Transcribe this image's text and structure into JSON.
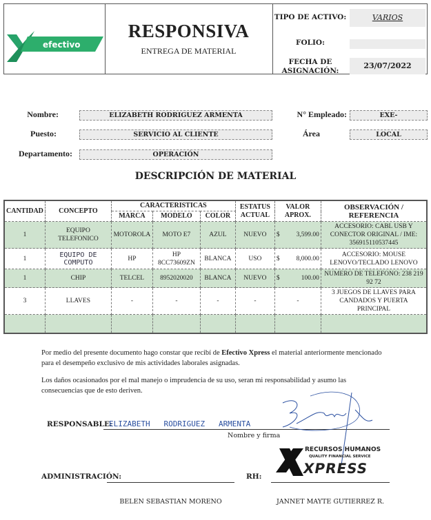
{
  "header": {
    "logo_text": "efectivo",
    "title": "RESPONSIVA",
    "subtitle": "ENTREGA DE MATERIAL",
    "tipo_label": "TIPO DE ACTIVO:",
    "tipo_value": "VARIOS",
    "folio_label": "FOLIO:",
    "folio_value": "",
    "fecha_label_1": "FECHA DE",
    "fecha_label_2": "ASIGNACIÓN:",
    "fecha_value": "23/07/2022"
  },
  "fields": {
    "nombre_label": "Nombre:",
    "nombre": "ELIZABETH RODRIGUEZ ARMENTA",
    "empleado_label": "N° Empleado:",
    "empleado": "EXE-",
    "puesto_label": "Puesto:",
    "puesto": "SERVICIO AL CLIENTE",
    "area_label": "Área",
    "area": "LOCAL",
    "depto_label": "Departamento:",
    "depto": "OPERACIÓN"
  },
  "section_title": "DESCRIPCIÓN DE MATERIAL",
  "table": {
    "headers": {
      "cantidad": "CANTIDAD",
      "concepto": "CONCEPTO",
      "caracteristicas": "CARACTERISTICAS",
      "marca": "MARCA",
      "modelo": "MODELO",
      "color": "COLOR",
      "estatus": "ESTATUS ACTUAL",
      "valor": "VALOR APROX.",
      "obs": "OBSERVACIÓN / REFERENCIA"
    },
    "rows": [
      {
        "cantidad": "1",
        "concepto": "EQUIPO TELEFONICO",
        "marca": "MOTOROLA",
        "modelo": "MOTO E7",
        "color": "AZUL",
        "estatus": "NUEVO",
        "currency": "$",
        "valor": "3,599.00",
        "obs": "ACCESORIO: CABL USB Y CONECTOR ORIGINAL / IME: 356915110537445"
      },
      {
        "cantidad": "1",
        "concepto": "EQUIPO DE COMPUTO",
        "marca": "HP",
        "modelo": "HP 8CC73609ZN",
        "color": "BLANCA",
        "estatus": "USO",
        "currency": "$",
        "valor": "8,000.00",
        "obs": "ACCESORIO: MOUSE LENOVO/TECLADO LENOVO"
      },
      {
        "cantidad": "1",
        "concepto": "CHIP",
        "marca": "TELCEL",
        "modelo": "8952020020",
        "color": "BLANCA",
        "estatus": "NUEVO",
        "currency": "$",
        "valor": "100.00",
        "obs": "NUMERO DE TELEFONO: 238 219 92 72"
      },
      {
        "cantidad": "3",
        "concepto": "LLAVES",
        "marca": "-",
        "modelo": "-",
        "color": "-",
        "estatus": "-",
        "currency": "",
        "valor": "-",
        "obs": "3 JUEGOS DE LLAVES PARA CANDADOS Y PUERTA PRINCIPAL"
      }
    ]
  },
  "text": {
    "p1_a": "Por medio del presente documento hago constar que recibí de ",
    "p1_bold": "Efectivo Xpress",
    "p1_b": " el material anteriormente mencionado para el desempeño exclusivo de mis actividades laborales asignadas.",
    "p2": "Los daños ocasionados por el mal manejo o imprudencia de su uso, seran mi responsabilidad y asumo las consecuencias que de esto deriven."
  },
  "signatures": {
    "responsable_label": "RESPONSABLE:",
    "responsable_hand": "ELIZABETH   RODRIGUEZ   ARMENTA",
    "nombre_firma": "Nombre y firma",
    "admin_label": "ADMINISTRACIÓN:",
    "rh_label": "RH:",
    "admin_name": "BELEN SEBASTIAN MORENO",
    "rh_name": "JANNET MAYTE GUTIERREZ R.",
    "stamp_line1": "RECURSOS HUMANOS",
    "stamp_line2": "QUALITY FINANCIAL SERVICE",
    "stamp_brand": "XPRESS"
  },
  "colors": {
    "green_row": "#cfe3cf",
    "brand_green": "#1f9c5a",
    "ink_blue": "#2a4fa0"
  }
}
